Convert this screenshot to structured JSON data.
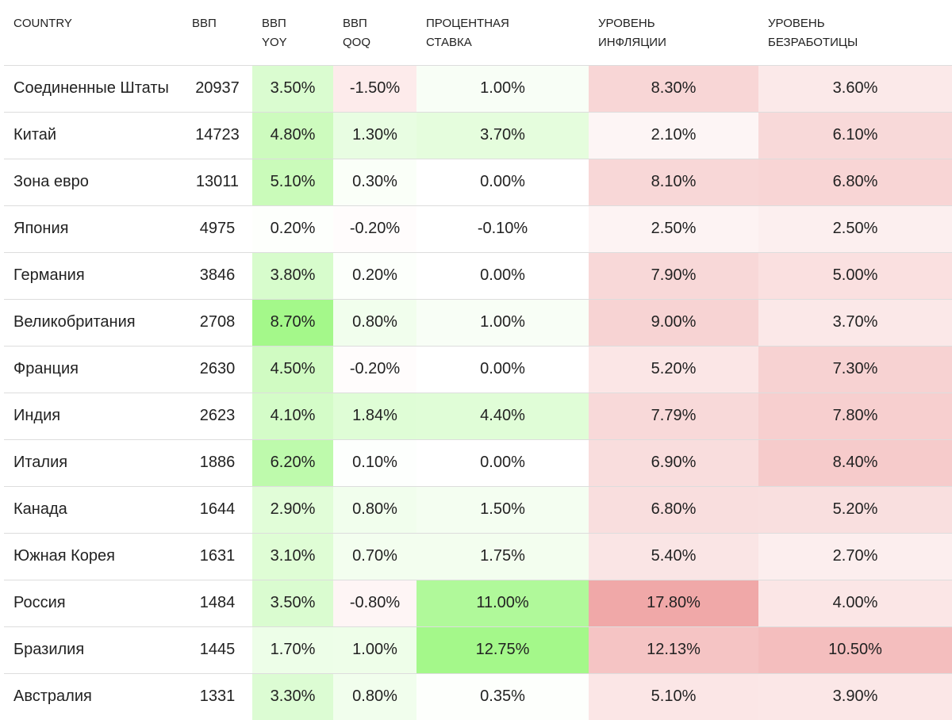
{
  "table": {
    "header": [
      "COUNTRY",
      "ВВП",
      "ВВП\nYOY",
      "ВВП\nQOQ",
      "ПРОЦЕНТНАЯ\nСТАВКА",
      "УРОВЕНЬ\nИНФЛЯЦИИ",
      "УРОВЕНЬ\nБЕЗРАБОТИЦЫ"
    ],
    "rows": [
      [
        "Соединенные Штаты",
        20937,
        "3.50%",
        "-1.50%",
        "1.00%",
        "8.30%",
        "3.60%"
      ],
      [
        "Китай",
        14723,
        "4.80%",
        "1.30%",
        "3.70%",
        "2.10%",
        "6.10%"
      ],
      [
        "Зона евро",
        13011,
        "5.10%",
        "0.30%",
        "0.00%",
        "8.10%",
        "6.80%"
      ],
      [
        "Япония",
        4975,
        "0.20%",
        "-0.20%",
        "-0.10%",
        "2.50%",
        "2.50%"
      ],
      [
        "Германия",
        3846,
        "3.80%",
        "0.20%",
        "0.00%",
        "7.90%",
        "5.00%"
      ],
      [
        "Великобритания",
        2708,
        "8.70%",
        "0.80%",
        "1.00%",
        "9.00%",
        "3.70%"
      ],
      [
        "Франция",
        2630,
        "4.50%",
        "-0.20%",
        "0.00%",
        "5.20%",
        "7.30%"
      ],
      [
        "Индия",
        2623,
        "4.10%",
        "1.84%",
        "4.40%",
        "7.79%",
        "7.80%"
      ],
      [
        "Италия",
        1886,
        "6.20%",
        "0.10%",
        "0.00%",
        "6.90%",
        "8.40%"
      ],
      [
        "Канада",
        1644,
        "2.90%",
        "0.80%",
        "1.50%",
        "6.80%",
        "5.20%"
      ],
      [
        "Южная Корея",
        1631,
        "3.10%",
        "0.70%",
        "1.75%",
        "5.40%",
        "2.70%"
      ],
      [
        "Россия",
        1484,
        "3.50%",
        "-0.80%",
        "11.00%",
        "17.80%",
        "4.00%"
      ],
      [
        "Бразилия",
        1445,
        "1.70%",
        "1.00%",
        "12.75%",
        "12.13%",
        "10.50%"
      ],
      [
        "Австралия",
        1331,
        "3.30%",
        "0.80%",
        "0.35%",
        "5.10%",
        "3.90%"
      ]
    ]
  }
}
